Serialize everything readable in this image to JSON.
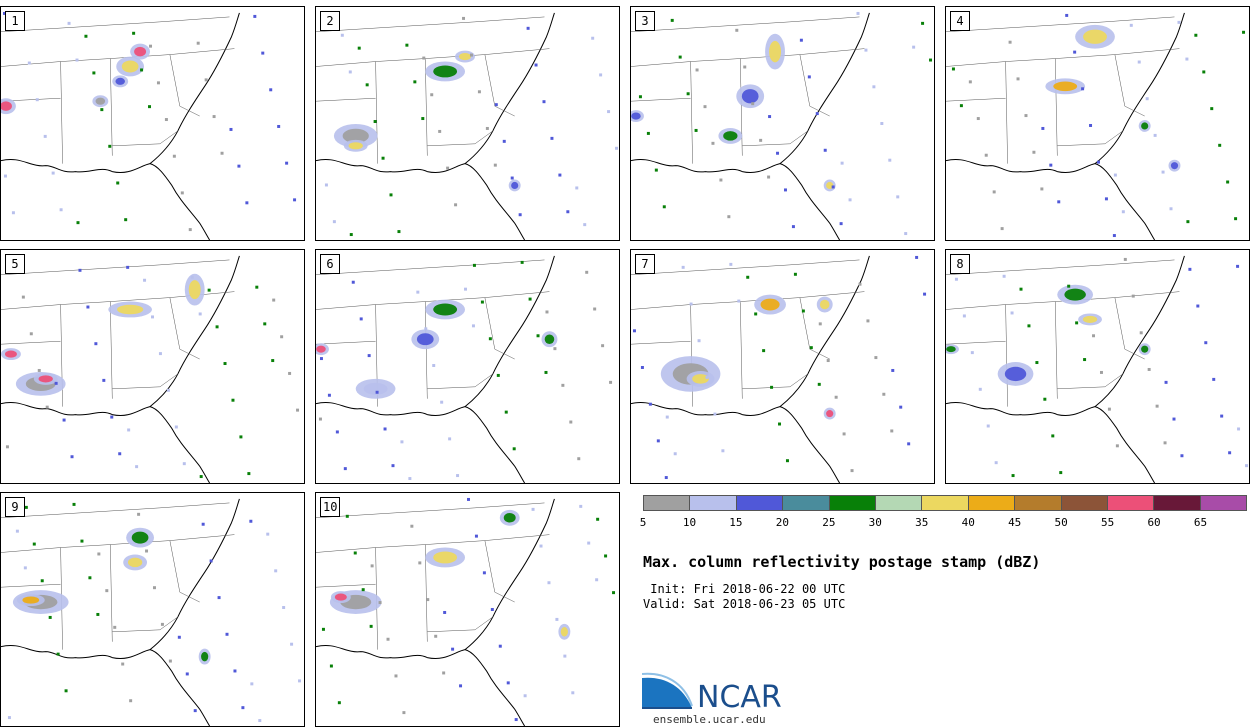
{
  "panels": [
    {
      "label": "1"
    },
    {
      "label": "2"
    },
    {
      "label": "3"
    },
    {
      "label": "4"
    },
    {
      "label": "5"
    },
    {
      "label": "6"
    },
    {
      "label": "7"
    },
    {
      "label": "8"
    },
    {
      "label": "9"
    },
    {
      "label": "10"
    }
  ],
  "colorbar": {
    "colors": [
      "#a0a0a0",
      "#b8c0ec",
      "#5058d8",
      "#4a8c9c",
      "#088008",
      "#b4d8b4",
      "#ecd860",
      "#ecac18",
      "#b47c2c",
      "#8c5438",
      "#ec5078",
      "#681838",
      "#a84ca8"
    ],
    "ticks": [
      "5",
      "10",
      "15",
      "20",
      "25",
      "30",
      "35",
      "40",
      "45",
      "50",
      "55",
      "60",
      "65"
    ]
  },
  "title": "Max. column reflectivity postage stamp (dBZ)",
  "init": " Init: Fri 2018-06-22 00 UTC",
  "valid": "Valid: Sat 2018-06-23 05 UTC",
  "logo": {
    "name": "NCAR",
    "url_text": "ensemble.ucar.edu"
  }
}
